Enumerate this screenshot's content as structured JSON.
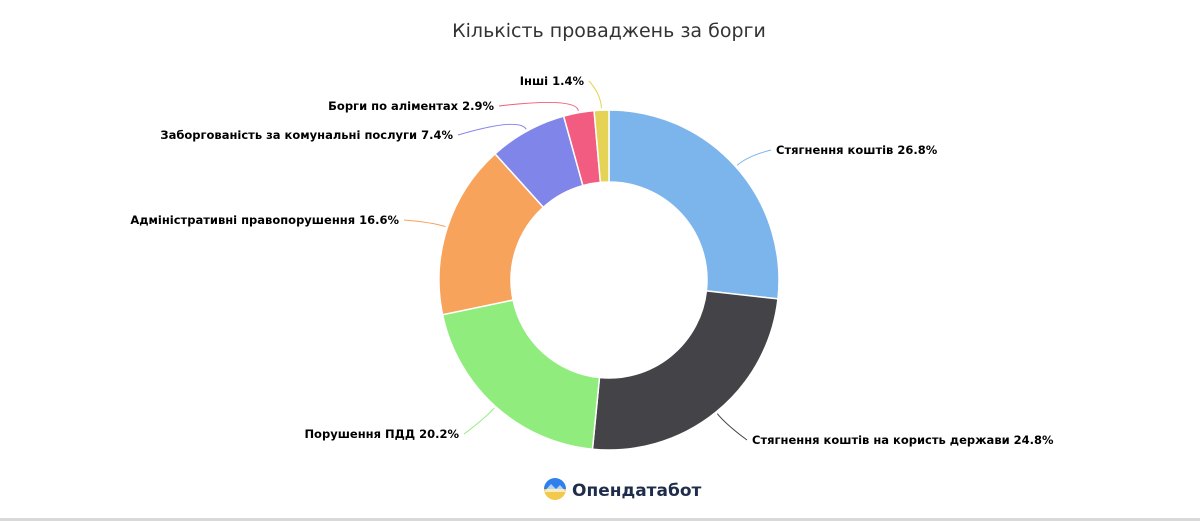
{
  "chart_data": {
    "type": "pie",
    "variant": "donut",
    "title": "Кількість проваджень за борги",
    "slices": [
      {
        "label": "Стягнення коштів",
        "value": 26.8,
        "display": "Стягнення коштів 26.8%",
        "color": "#7cb5ec"
      },
      {
        "label": "Стягнення коштів на користь держави",
        "value": 24.8,
        "display": "Стягнення коштів на користь держави 24.8%",
        "color": "#434348"
      },
      {
        "label": "Порушення ПДД",
        "value": 20.2,
        "display": "Порушення ПДД 20.2%",
        "color": "#90ed7d"
      },
      {
        "label": "Адміністративні правопорушення",
        "value": 16.6,
        "display": "Адміністративні правопорушення 16.6%",
        "color": "#f7a35c"
      },
      {
        "label": "Заборгованість за комунальні послуги",
        "value": 7.4,
        "display": "Заборгованість за комунальні послуги 7.4%",
        "color": "#8085e9"
      },
      {
        "label": "Борги по аліментах",
        "value": 2.9,
        "display": "Борги по аліментах 2.9%",
        "color": "#f15c80"
      },
      {
        "label": "Інші",
        "value": 1.4,
        "display": "Інші 1.4%",
        "color": "#e4d354"
      }
    ]
  },
  "logo": {
    "text": "Опендатабот",
    "icon": "opendatabot-logo-icon",
    "colors": {
      "top": "#2f80ed",
      "bottom": "#f2c94c"
    }
  }
}
